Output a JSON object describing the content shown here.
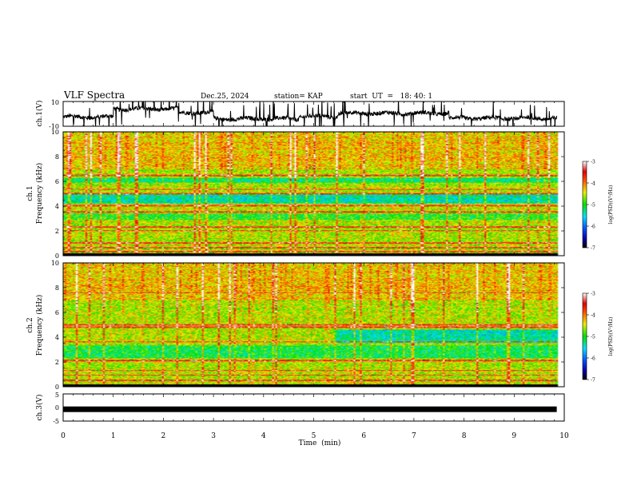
{
  "chart_data": {
    "type": "spectrogram",
    "header": {
      "title": "VLF Spectra",
      "date": "Dec.25, 2024",
      "station": "station= KAP",
      "start_ut": "start  UT  =   18: 40: 1"
    },
    "time_axis": {
      "label": "Time  (min)",
      "range": [
        0,
        10
      ],
      "ticks": [
        "0",
        "1",
        "2",
        "3",
        "4",
        "5",
        "6",
        "7",
        "8",
        "9",
        "10"
      ],
      "data_end_min": 9.85
    },
    "ch1_waveform": {
      "ylabel": "ch.1(V)",
      "range": [
        -10,
        10
      ],
      "ticks": [
        "10",
        "-10"
      ],
      "baseline_segments": [
        {
          "t0": 0.0,
          "t1": 1.0,
          "v": -2.5
        },
        {
          "t0": 1.0,
          "t1": 2.3,
          "v": 4.0
        },
        {
          "t0": 2.3,
          "t1": 3.0,
          "v": 1.0
        },
        {
          "t0": 3.0,
          "t1": 4.7,
          "v": -4.0
        },
        {
          "t0": 4.7,
          "t1": 5.5,
          "v": -2.0
        },
        {
          "t0": 5.5,
          "t1": 7.7,
          "v": 0.5
        },
        {
          "t0": 7.7,
          "t1": 9.85,
          "v": -3.5
        }
      ]
    },
    "ch1_spectrogram": {
      "ylabel": "ch.1",
      "ylabel2": "Frequency  (kHz)",
      "freq_range_khz": [
        0,
        10
      ],
      "ticks": [
        "0",
        "2",
        "4",
        "6",
        "8",
        "10"
      ],
      "noise_bands_khz": [
        {
          "f0": 5.9,
          "f1": 6.3,
          "level": -5.2
        },
        {
          "f0": 4.2,
          "f1": 5.0,
          "level": -5.4
        },
        {
          "f0": 2.9,
          "f1": 3.4,
          "level": -5.0
        }
      ],
      "emission_lines_khz": [
        6.5,
        5.35,
        5.0,
        4.05,
        3.5,
        2.3,
        2.0,
        1.0,
        0.6,
        0.3
      ]
    },
    "ch2_spectrogram": {
      "ylabel": "ch.2",
      "ylabel2": "Frequency  (kHz)",
      "freq_range_khz": [
        0,
        10
      ],
      "ticks": [
        "0",
        "2",
        "4",
        "6",
        "8",
        "10"
      ],
      "noise_bands_khz": [
        {
          "f0": 3.5,
          "f1": 4.6,
          "level": -5.4,
          "t_start_min": 5.4
        },
        {
          "f0": 2.3,
          "f1": 3.3,
          "level": -5.1
        }
      ],
      "emission_lines_khz": [
        7.6,
        5.0,
        4.8,
        3.6,
        2.1,
        1.3,
        0.9,
        0.5
      ]
    },
    "ch3_waveform": {
      "ylabel": "ch.3(V)",
      "range": [
        -5,
        5
      ],
      "ticks": [
        "5",
        "0",
        "-5"
      ],
      "value_v": -0.5
    },
    "colorbar": {
      "label": "log(PSD)(V²/Hz)",
      "range": [
        -7,
        -3
      ],
      "ticks": [
        "-3",
        "-4",
        "-5",
        "-6",
        "-7"
      ]
    }
  }
}
